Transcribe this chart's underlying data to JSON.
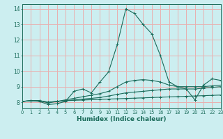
{
  "xlabel": "Humidex (Indice chaleur)",
  "xlim": [
    0,
    23
  ],
  "ylim": [
    7.6,
    14.3
  ],
  "xticks": [
    0,
    1,
    2,
    3,
    4,
    5,
    6,
    7,
    8,
    9,
    10,
    11,
    12,
    13,
    14,
    15,
    16,
    17,
    18,
    19,
    20,
    21,
    22,
    23
  ],
  "yticks": [
    8,
    9,
    10,
    11,
    12,
    13,
    14
  ],
  "bg_color": "#cceef0",
  "grid_color": "#e8b0b0",
  "line_color": "#1a6b5a",
  "axis_label_color": "#1a6b5a",
  "line1_y": [
    8.05,
    8.1,
    8.1,
    8.0,
    8.05,
    8.1,
    8.15,
    8.2,
    8.25,
    8.3,
    8.4,
    8.5,
    8.6,
    8.65,
    8.7,
    8.75,
    8.8,
    8.85,
    8.85,
    8.85,
    8.85,
    8.9,
    8.95,
    9.0
  ],
  "line2_y": [
    8.05,
    8.1,
    8.05,
    7.85,
    7.9,
    8.05,
    8.7,
    8.85,
    8.6,
    9.3,
    9.95,
    11.7,
    14.0,
    13.7,
    13.0,
    12.4,
    11.0,
    9.3,
    9.0,
    8.85,
    8.15,
    9.1,
    9.5,
    9.4
  ],
  "line3_y": [
    8.05,
    8.1,
    8.1,
    7.95,
    8.05,
    8.15,
    8.25,
    8.35,
    8.45,
    8.55,
    8.7,
    9.0,
    9.3,
    9.4,
    9.45,
    9.4,
    9.3,
    9.1,
    9.0,
    9.0,
    9.0,
    9.0,
    9.05,
    9.1
  ],
  "line4_y": [
    8.05,
    8.1,
    8.1,
    8.0,
    8.05,
    8.1,
    8.12,
    8.14,
    8.16,
    8.18,
    8.2,
    8.22,
    8.24,
    8.26,
    8.28,
    8.3,
    8.32,
    8.34,
    8.36,
    8.38,
    8.4,
    8.42,
    8.44,
    8.46
  ]
}
